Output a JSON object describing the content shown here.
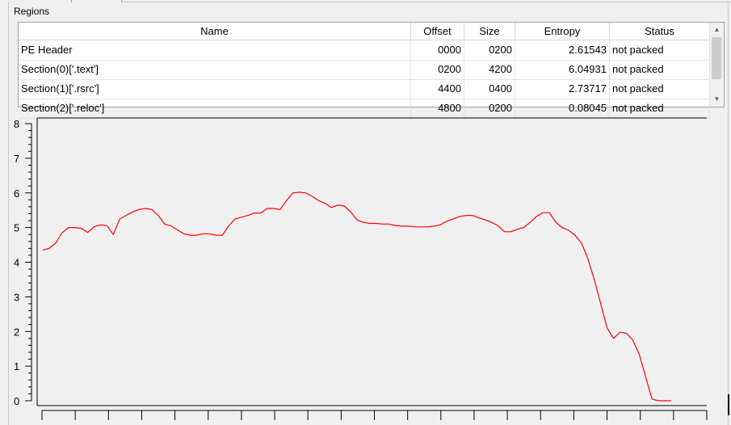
{
  "group_title": "Regions",
  "table": {
    "columns": [
      "Name",
      "Offset",
      "Size",
      "Entropy",
      "Status"
    ],
    "rows": [
      {
        "name": "PE Header",
        "offset": "0000",
        "size": "0200",
        "entropy": "2.61543",
        "status": "not packed"
      },
      {
        "name": "Section(0)['.text']",
        "offset": "0200",
        "size": "4200",
        "entropy": "6.04931",
        "status": "not packed"
      },
      {
        "name": "Section(1)['.rsrc']",
        "offset": "4400",
        "size": "0400",
        "entropy": "2.73717",
        "status": "not packed"
      },
      {
        "name": "Section(2)['.reloc']",
        "offset": "4800",
        "size": "0200",
        "entropy": "0.08045",
        "status": "not packed"
      }
    ]
  },
  "scrollbar": {
    "up_icon": "triangle-up",
    "down_icon": "triangle-down"
  },
  "chart_data": {
    "type": "line",
    "title": "",
    "xlabel": "",
    "ylabel": "",
    "ylim": [
      0,
      8
    ],
    "yticks": [
      "0",
      "1",
      "2",
      "3",
      "4",
      "5",
      "6",
      "7",
      "8"
    ],
    "line_color": "#ff0000",
    "series": [
      {
        "values": [
          4.35,
          4.4,
          4.55,
          4.85,
          5.0,
          5.0,
          4.98,
          4.86,
          5.02,
          5.08,
          5.05,
          4.8,
          5.25,
          5.35,
          5.45,
          5.52,
          5.55,
          5.52,
          5.35,
          5.1,
          5.05,
          4.93,
          4.82,
          4.78,
          4.78,
          4.82,
          4.82,
          4.78,
          4.78,
          5.05,
          5.25,
          5.3,
          5.35,
          5.42,
          5.42,
          5.55,
          5.55,
          5.52,
          5.78,
          6.0,
          6.02,
          6.0,
          5.9,
          5.78,
          5.7,
          5.58,
          5.65,
          5.62,
          5.45,
          5.22,
          5.15,
          5.12,
          5.12,
          5.1,
          5.1,
          5.06,
          5.04,
          5.04,
          5.02,
          5.02,
          5.02,
          5.04,
          5.08,
          5.18,
          5.25,
          5.32,
          5.35,
          5.35,
          5.28,
          5.22,
          5.15,
          5.05,
          4.88,
          4.88,
          4.95,
          5.0,
          5.15,
          5.32,
          5.43,
          5.43,
          5.15,
          5.0,
          4.92,
          4.78,
          4.55,
          4.1,
          3.5,
          2.8,
          2.1,
          1.8,
          1.98,
          1.95,
          1.75,
          1.35,
          0.7,
          0.05,
          0.0,
          0.0,
          0.0
        ]
      }
    ]
  }
}
